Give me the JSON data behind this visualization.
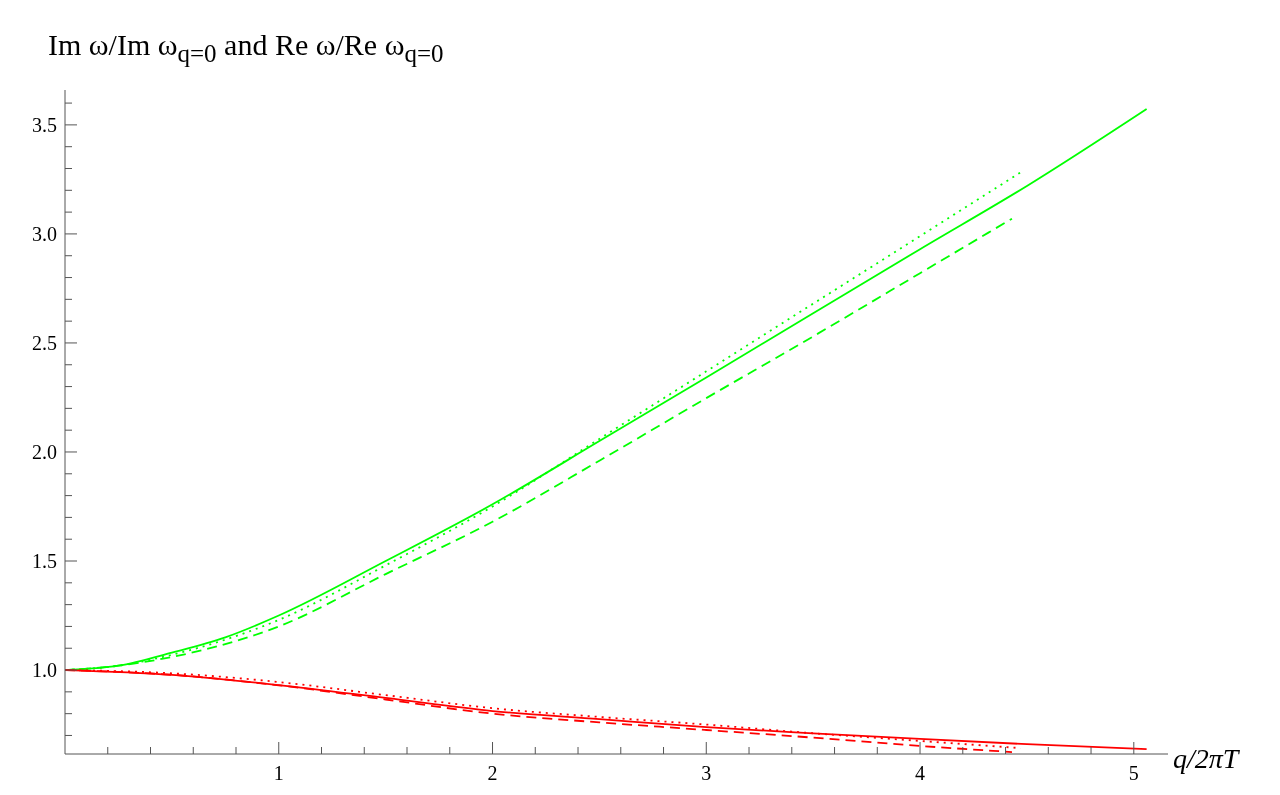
{
  "chart_data": {
    "type": "line",
    "ylabel": "Im ω/Im ω$_{q=0}$ and Re ω/Re ω$_{q=0}$",
    "xlabel": "q/2πT",
    "xlim": [
      0,
      5.16
    ],
    "ylim": [
      0.615,
      3.66
    ],
    "xticks": [
      {
        "value": 0.2,
        "label": null
      },
      {
        "value": 0.4,
        "label": null
      },
      {
        "value": 0.6,
        "label": null
      },
      {
        "value": 0.8,
        "label": null
      },
      1,
      {
        "value": 1.2,
        "label": null
      },
      {
        "value": 1.4,
        "label": null
      },
      {
        "value": 1.6,
        "label": null
      },
      {
        "value": 1.8,
        "label": null
      },
      2,
      {
        "value": 2.2,
        "label": null
      },
      {
        "value": 2.4,
        "label": null
      },
      {
        "value": 2.6,
        "label": null
      },
      {
        "value": 2.8,
        "label": null
      },
      3,
      {
        "value": 3.2,
        "label": null
      },
      {
        "value": 3.4,
        "label": null
      },
      {
        "value": 3.6,
        "label": null
      },
      {
        "value": 3.8,
        "label": null
      },
      4,
      {
        "value": 4.2,
        "label": null
      },
      {
        "value": 4.4,
        "label": null
      },
      {
        "value": 4.6,
        "label": null
      },
      {
        "value": 4.8,
        "label": null
      },
      5
    ],
    "yticks": [
      {
        "value": 0.7,
        "label": null
      },
      {
        "value": 0.8,
        "label": null
      },
      {
        "value": 0.9,
        "label": null
      },
      {
        "value": 1,
        "label": "1.0"
      },
      {
        "value": 1.1,
        "label": null
      },
      {
        "value": 1.2,
        "label": null
      },
      {
        "value": 1.3,
        "label": null
      },
      {
        "value": 1.4,
        "label": null
      },
      1.5,
      {
        "value": 1.6,
        "label": null
      },
      {
        "value": 1.7,
        "label": null
      },
      {
        "value": 1.8,
        "label": null
      },
      {
        "value": 1.9,
        "label": null
      },
      {
        "value": 2,
        "label": "2.0"
      },
      {
        "value": 2.1,
        "label": null
      },
      {
        "value": 2.2,
        "label": null
      },
      {
        "value": 2.3,
        "label": null
      },
      {
        "value": 2.4,
        "label": null
      },
      2.5,
      {
        "value": 2.6,
        "label": null
      },
      {
        "value": 2.7,
        "label": null
      },
      {
        "value": 2.8,
        "label": null
      },
      {
        "value": 2.9,
        "label": null
      },
      {
        "value": 3,
        "label": "3.0"
      },
      {
        "value": 3.1,
        "label": null
      },
      {
        "value": 3.2,
        "label": null
      },
      {
        "value": 3.3,
        "label": null
      },
      {
        "value": 3.4,
        "label": null
      },
      3.5,
      {
        "value": 3.6,
        "label": null
      }
    ],
    "grid": false,
    "legend": false,
    "marker": "none",
    "series": [
      {
        "color": "#00ff00",
        "line_style": "solid",
        "x": [
          0,
          0.25,
          0.5,
          0.75,
          1,
          1.5,
          2,
          2.5,
          3,
          3.5,
          4,
          4.5,
          5.06
        ],
        "values": [
          1,
          1.02,
          1.08,
          1.15,
          1.25,
          1.5,
          1.76,
          2.05,
          2.342,
          2.636,
          2.93,
          3.22,
          3.573
        ]
      },
      {
        "color": "#00ff00",
        "line_style": "dotted",
        "x": [
          0,
          0.25,
          0.5,
          1,
          1.5,
          2,
          2.5,
          3,
          3.5,
          4,
          4.48
        ],
        "values": [
          1,
          1.02,
          1.07,
          1.23,
          1.48,
          1.75,
          2.06,
          2.37,
          2.68,
          2.99,
          3.288
        ]
      },
      {
        "color": "#00ff00",
        "line_style": "dashed",
        "x": [
          0,
          0.25,
          0.5,
          1,
          1.5,
          2,
          2.5,
          3,
          3.5,
          4,
          4.43
        ],
        "values": [
          1,
          1.02,
          1.06,
          1.2,
          1.44,
          1.68,
          1.96,
          2.247,
          2.53,
          2.82,
          3.07
        ]
      },
      {
        "color": "#ff0000",
        "line_style": "solid",
        "x": [
          0,
          0.5,
          1,
          1.5,
          2,
          2.5,
          3,
          3.5,
          4,
          4.5,
          5.06
        ],
        "values": [
          1,
          0.978,
          0.931,
          0.872,
          0.812,
          0.775,
          0.738,
          0.71,
          0.684,
          0.66,
          0.637
        ]
      },
      {
        "color": "#ff0000",
        "line_style": "dotted",
        "x": [
          0,
          0.5,
          1,
          1.5,
          2,
          2.5,
          3,
          3.5,
          4,
          4.47
        ],
        "values": [
          1,
          0.985,
          0.945,
          0.885,
          0.825,
          0.785,
          0.75,
          0.71,
          0.675,
          0.642
        ]
      },
      {
        "color": "#ff0000",
        "line_style": "dashed",
        "x": [
          0,
          0.5,
          1,
          1.5,
          2,
          2.5,
          3,
          3.5,
          4,
          4.43
        ],
        "values": [
          1,
          0.978,
          0.93,
          0.865,
          0.8,
          0.76,
          0.725,
          0.69,
          0.652,
          0.624
        ]
      }
    ]
  }
}
